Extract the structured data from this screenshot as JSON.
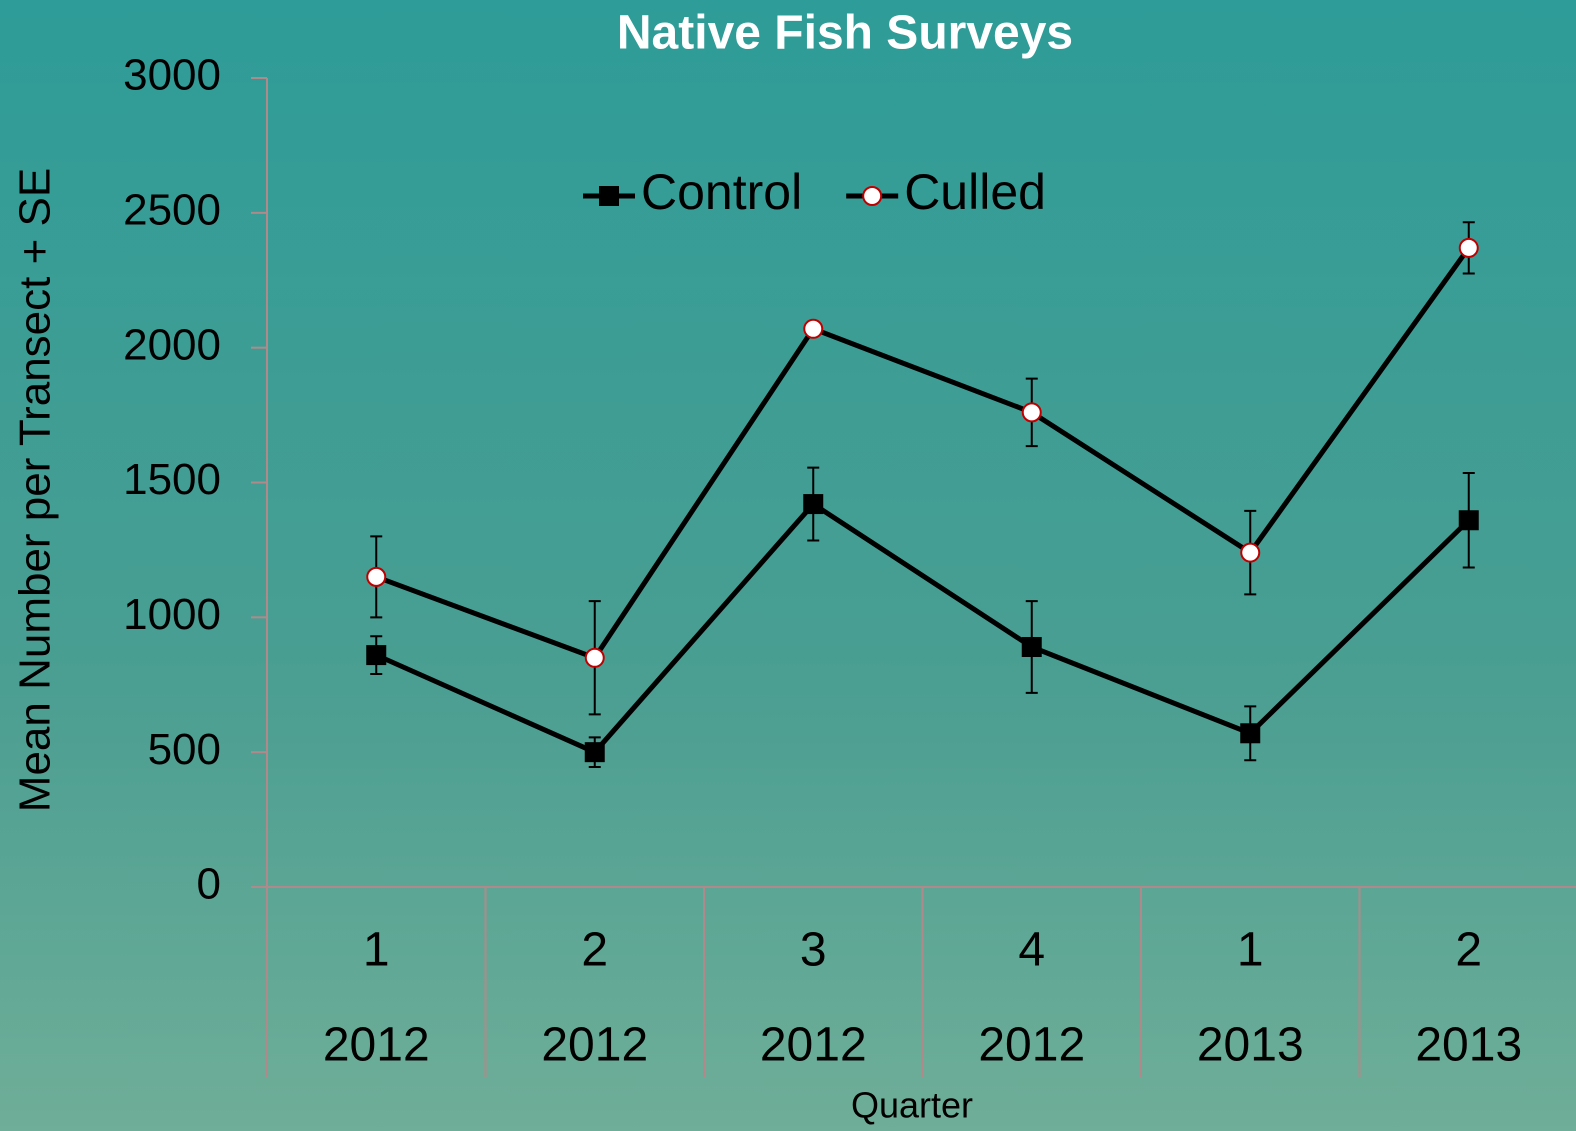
{
  "chart_data": {
    "type": "line",
    "title": "Native Fish Surveys",
    "x_label": "Quarter",
    "y_label": "Mean Number per Transect + SE",
    "categories": [
      "1",
      "2",
      "3",
      "4",
      "1",
      "2"
    ],
    "years": [
      "2012",
      "2012",
      "2012",
      "2012",
      "2013",
      "2013"
    ],
    "series": [
      {
        "name": "Control",
        "color": "#000000",
        "marker": "square",
        "values": [
          860,
          500,
          1420,
          890,
          570,
          1360
        ],
        "errors": [
          70,
          55,
          135,
          170,
          100,
          175
        ]
      },
      {
        "name": "Culled",
        "color": "#000000",
        "marker": "circle",
        "values": [
          1150,
          850,
          2070,
          1760,
          1240,
          2370
        ],
        "errors": [
          150,
          210,
          25,
          125,
          155,
          95
        ]
      }
    ],
    "ylim": [
      0,
      3000
    ],
    "yticks": [
      0,
      500,
      1000,
      1500,
      2000,
      2500,
      3000
    ],
    "legend": "top"
  }
}
